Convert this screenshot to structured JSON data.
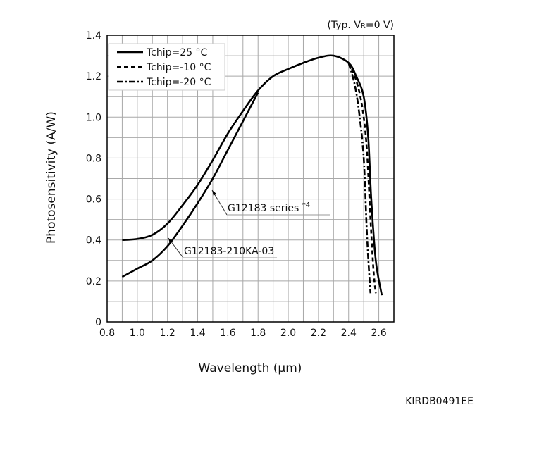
{
  "chart_data": {
    "type": "line",
    "typ_note": "(Typ. V",
    "typ_sub": "R",
    "typ_tail": "=0 V)",
    "xlabel": "Wavelength (μm)",
    "ylabel": "Photosensitivity (A/W)",
    "xlim": [
      0.8,
      2.7
    ],
    "ylim": [
      0,
      1.4
    ],
    "x_ticks": [
      "0.8",
      "1.0",
      "1.2",
      "1.4",
      "1.6",
      "1.8",
      "2.0",
      "2.2",
      "2.4",
      "2.6"
    ],
    "y_ticks": [
      "0",
      "0.2",
      "0.4",
      "0.6",
      "0.8",
      "1.0",
      "1.2",
      "1.4"
    ],
    "grid": true,
    "legend_position": "top-left",
    "legend": [
      {
        "label": "Tchip=25 °C",
        "style": "solid"
      },
      {
        "label": "Tchip=-10 °C",
        "style": "dashed"
      },
      {
        "label": "Tchip=-20 °C",
        "style": "dash-dot"
      }
    ],
    "annotations": [
      {
        "text": "G12183 series ",
        "sup": "*4"
      },
      {
        "text": "G12183-210KA-03"
      }
    ],
    "series": [
      {
        "name": "G12183 series",
        "style": "solid",
        "points": [
          [
            0.9,
            0.4
          ],
          [
            1.0,
            0.405
          ],
          [
            1.1,
            0.425
          ],
          [
            1.2,
            0.48
          ],
          [
            1.3,
            0.57
          ],
          [
            1.4,
            0.67
          ],
          [
            1.5,
            0.79
          ],
          [
            1.6,
            0.92
          ],
          [
            1.7,
            1.03
          ],
          [
            1.8,
            1.13
          ],
          [
            1.9,
            1.2
          ],
          [
            2.0,
            1.235
          ],
          [
            2.1,
            1.265
          ],
          [
            2.2,
            1.29
          ],
          [
            2.3,
            1.3
          ],
          [
            2.4,
            1.265
          ],
          [
            2.45,
            1.2
          ],
          [
            2.5,
            1.1
          ],
          [
            2.53,
            0.9
          ],
          [
            2.55,
            0.6
          ],
          [
            2.58,
            0.3
          ],
          [
            2.62,
            0.13
          ]
        ]
      },
      {
        "name": "G12183-210KA-03",
        "style": "solid",
        "points": [
          [
            0.9,
            0.22
          ],
          [
            1.0,
            0.26
          ],
          [
            1.1,
            0.3
          ],
          [
            1.2,
            0.37
          ],
          [
            1.3,
            0.47
          ],
          [
            1.4,
            0.58
          ],
          [
            1.5,
            0.7
          ],
          [
            1.6,
            0.84
          ],
          [
            1.7,
            0.98
          ],
          [
            1.8,
            1.12
          ]
        ]
      },
      {
        "name": "Tchip=-10 °C",
        "style": "dashed",
        "points": [
          [
            2.4,
            1.265
          ],
          [
            2.45,
            1.18
          ],
          [
            2.49,
            1.05
          ],
          [
            2.52,
            0.85
          ],
          [
            2.545,
            0.5
          ],
          [
            2.565,
            0.25
          ],
          [
            2.58,
            0.14
          ]
        ]
      },
      {
        "name": "Tchip=-20 °C",
        "style": "dash-dot",
        "points": [
          [
            2.4,
            1.265
          ],
          [
            2.44,
            1.16
          ],
          [
            2.47,
            1.02
          ],
          [
            2.5,
            0.8
          ],
          [
            2.52,
            0.45
          ],
          [
            2.535,
            0.25
          ],
          [
            2.545,
            0.14
          ]
        ]
      }
    ]
  },
  "figure_code": "KIRDB0491EE"
}
